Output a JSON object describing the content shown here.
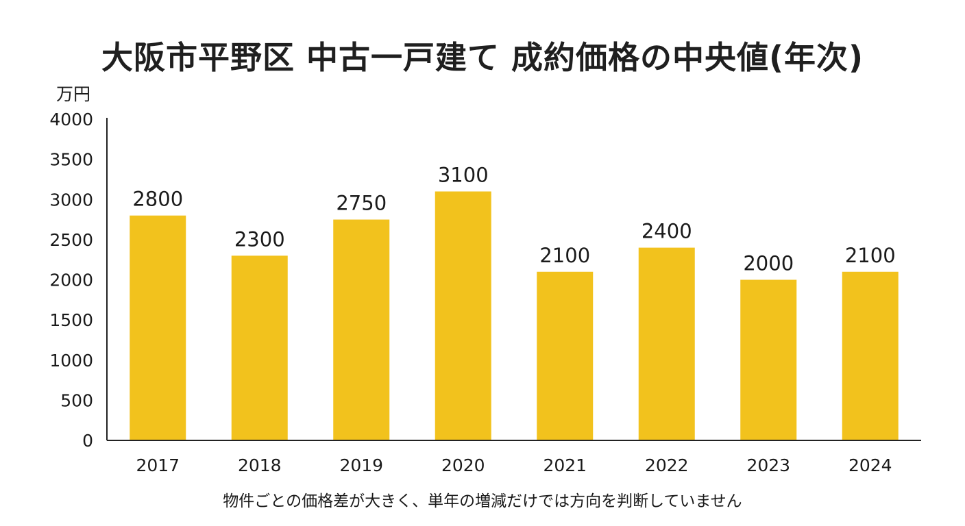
{
  "chart_data": {
    "type": "bar",
    "title": "大阪市平野区 中古一戸建て 成約価格の中央値(年次)",
    "ylabel": "万円",
    "xlabel": "",
    "categories": [
      "2017",
      "2018",
      "2019",
      "2020",
      "2021",
      "2022",
      "2023",
      "2024"
    ],
    "values": [
      2800,
      2300,
      2750,
      3100,
      2100,
      2400,
      2000,
      2100
    ],
    "data_labels": [
      "2800",
      "2300",
      "2750",
      "3100",
      "2100",
      "2400",
      "2000",
      "2100"
    ],
    "ylim": [
      0,
      4000
    ],
    "yticks": [
      0,
      500,
      1000,
      1500,
      2000,
      2500,
      3000,
      3500,
      4000
    ],
    "ytick_labels": [
      "0",
      "500",
      "1000",
      "1500",
      "2000",
      "2500",
      "3000",
      "3500",
      "4000"
    ],
    "grid": false,
    "bar_color": "#F2C21D",
    "axis_color": "#222222",
    "note": "物件ごとの価格差が大きく、単年の増減だけでは方向を判断していません"
  }
}
